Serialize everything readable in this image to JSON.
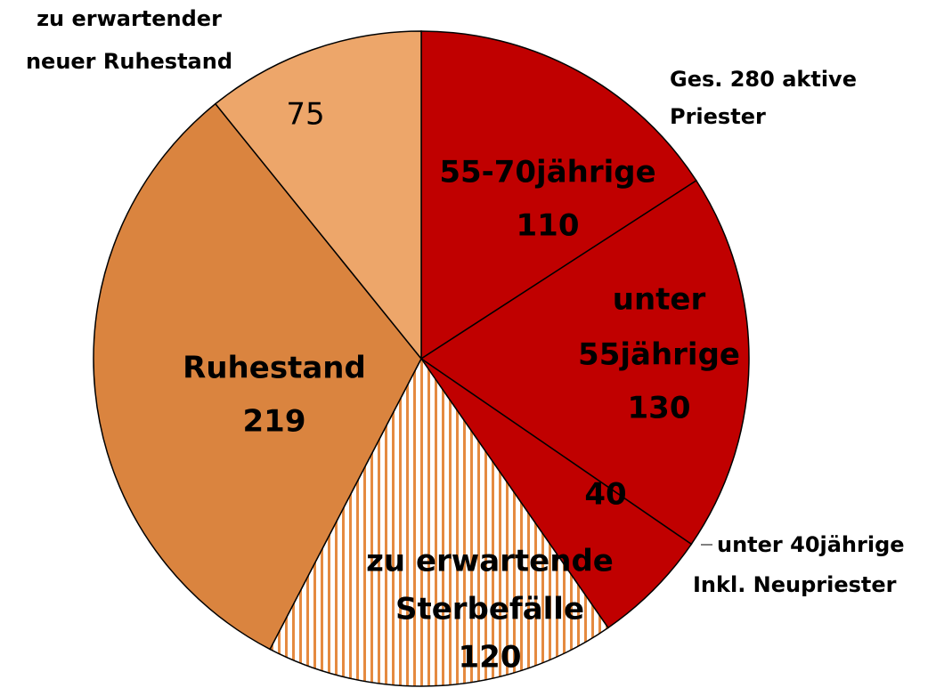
{
  "chart_data": {
    "type": "pie",
    "categories": [
      [
        "55-70jährige"
      ],
      [
        "unter",
        "55jährige"
      ],
      [
        "unter 40jährige",
        "Inkl. Neupriester"
      ],
      [
        "zu erwartende",
        "Sterbefälle"
      ],
      [
        "Ruhestand"
      ],
      [
        "zu erwartender",
        "neuer Ruhestand"
      ]
    ],
    "values": [
      110,
      130,
      40,
      120,
      219,
      75
    ],
    "colors": [
      "#C00000",
      "#C00000",
      "#C00000",
      "striped",
      "#DA843F",
      "#EDA66A"
    ],
    "annotation": [
      "Ges. 280 aktive",
      "Priester"
    ]
  }
}
